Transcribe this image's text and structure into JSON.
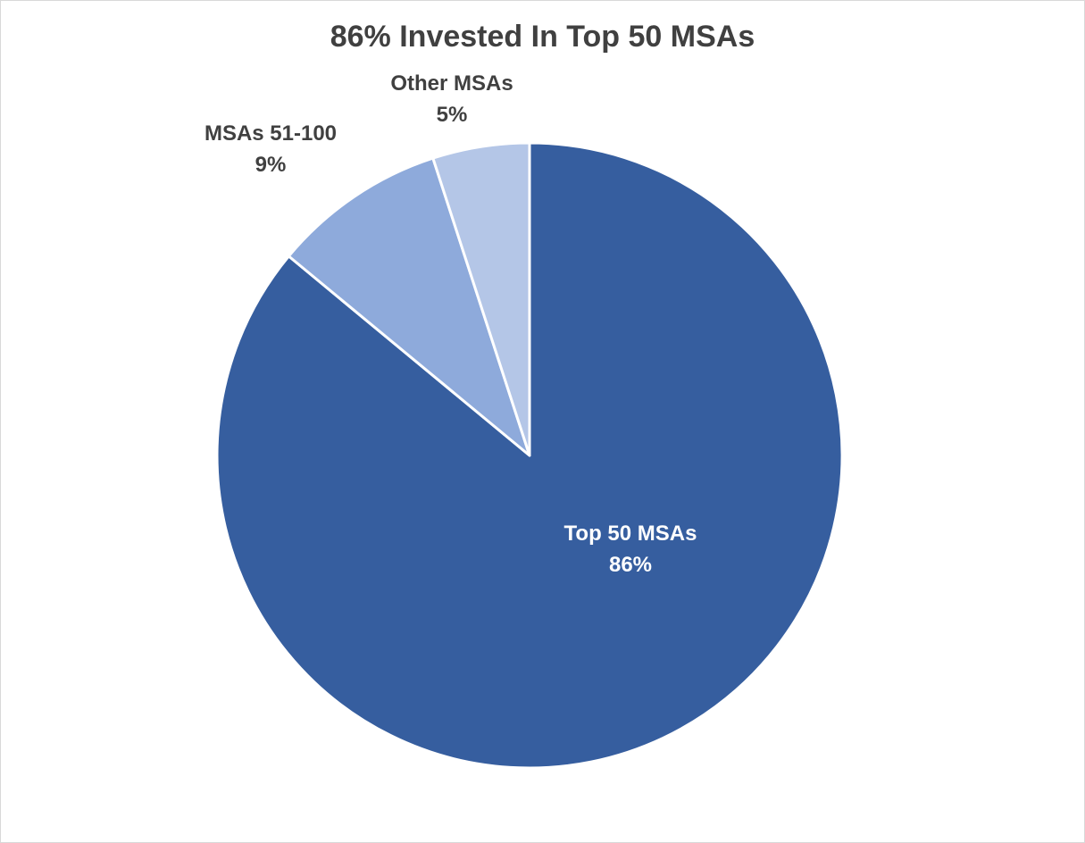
{
  "chart_data": {
    "type": "pie",
    "title": "86% Invested In Top 50 MSAs",
    "start_angle_deg": 0,
    "direction": "clockwise",
    "slices": [
      {
        "label": "Top 50 MSAs",
        "value": 86,
        "value_label": "86%",
        "color": "#365e9f",
        "label_color": "#ffffff"
      },
      {
        "label": "MSAs 51-100",
        "value": 9,
        "value_label": "9%",
        "color": "#8eaadb",
        "label_color": "#404040"
      },
      {
        "label": "Other MSAs",
        "value": 5,
        "value_label": "5%",
        "color": "#b4c6e7",
        "label_color": "#404040"
      }
    ]
  }
}
